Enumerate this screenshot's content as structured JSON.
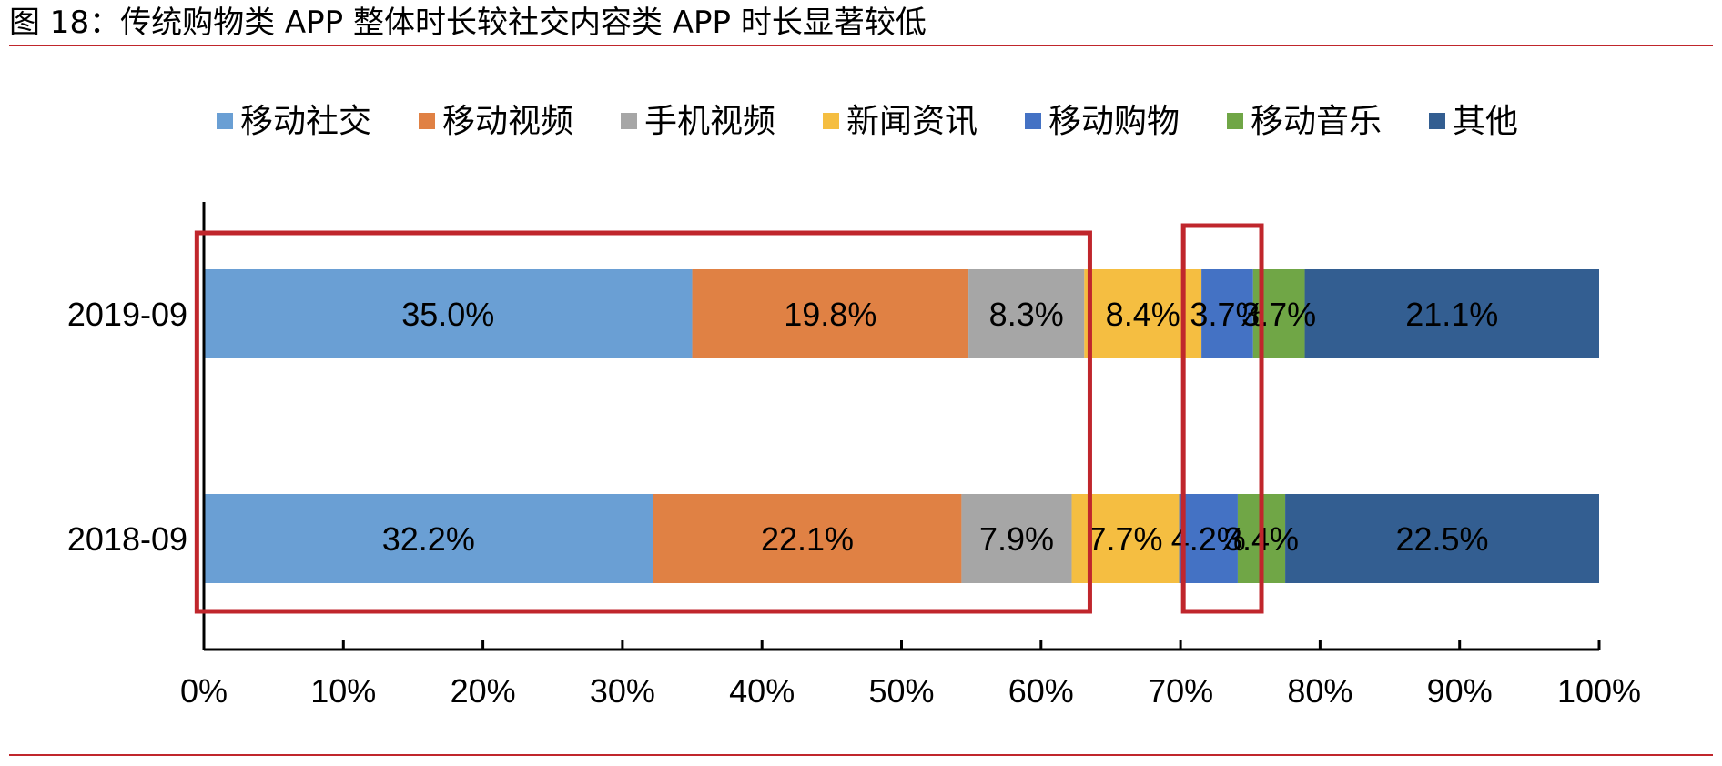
{
  "title": "图 18：传统购物类 APP 整体时长较社交内容类 APP 时长显著较低",
  "chart_data": {
    "type": "bar",
    "orientation": "horizontal",
    "stacked": "percent",
    "categories": [
      "2019-09",
      "2018-09"
    ],
    "series": [
      {
        "name": "移动社交",
        "color": "#6a9fd4",
        "values": [
          35.0,
          32.2
        ],
        "labels": [
          "35.0%",
          "32.2%"
        ]
      },
      {
        "name": "移动视频",
        "color": "#e08144",
        "values": [
          19.8,
          22.1
        ],
        "labels": [
          "19.8%",
          "22.1%"
        ]
      },
      {
        "name": "手机视频",
        "color": "#a6a6a6",
        "values": [
          8.3,
          7.9
        ],
        "labels": [
          "8.3%",
          "7.9%"
        ]
      },
      {
        "name": "新闻资讯",
        "color": "#f5be41",
        "values": [
          8.4,
          7.7
        ],
        "labels": [
          "8.4%",
          "7.7%"
        ]
      },
      {
        "name": "移动购物",
        "color": "#4472c4",
        "values": [
          3.7,
          4.2
        ],
        "labels": [
          "3.7%",
          "4.2%"
        ]
      },
      {
        "name": "移动音乐",
        "color": "#70a646",
        "values": [
          3.7,
          3.4
        ],
        "labels": [
          "3.7%",
          "3.4%"
        ]
      },
      {
        "name": "其他",
        "color": "#335e91",
        "values": [
          21.1,
          22.5
        ],
        "labels": [
          "21.1%",
          "22.5%"
        ]
      }
    ],
    "xlim": [
      0,
      100
    ],
    "xticks": [
      "0%",
      "10%",
      "20%",
      "30%",
      "40%",
      "50%",
      "60%",
      "70%",
      "80%",
      "90%",
      "100%"
    ],
    "legend_position": "top",
    "grid": false,
    "highlight_boxes": [
      {
        "name": "social-content-box",
        "x_range": [
          -0.5,
          63.5
        ],
        "color": "#c0262c"
      },
      {
        "name": "shopping-box",
        "x_range": [
          70.2,
          75.8
        ],
        "color": "#c0262c"
      }
    ]
  }
}
